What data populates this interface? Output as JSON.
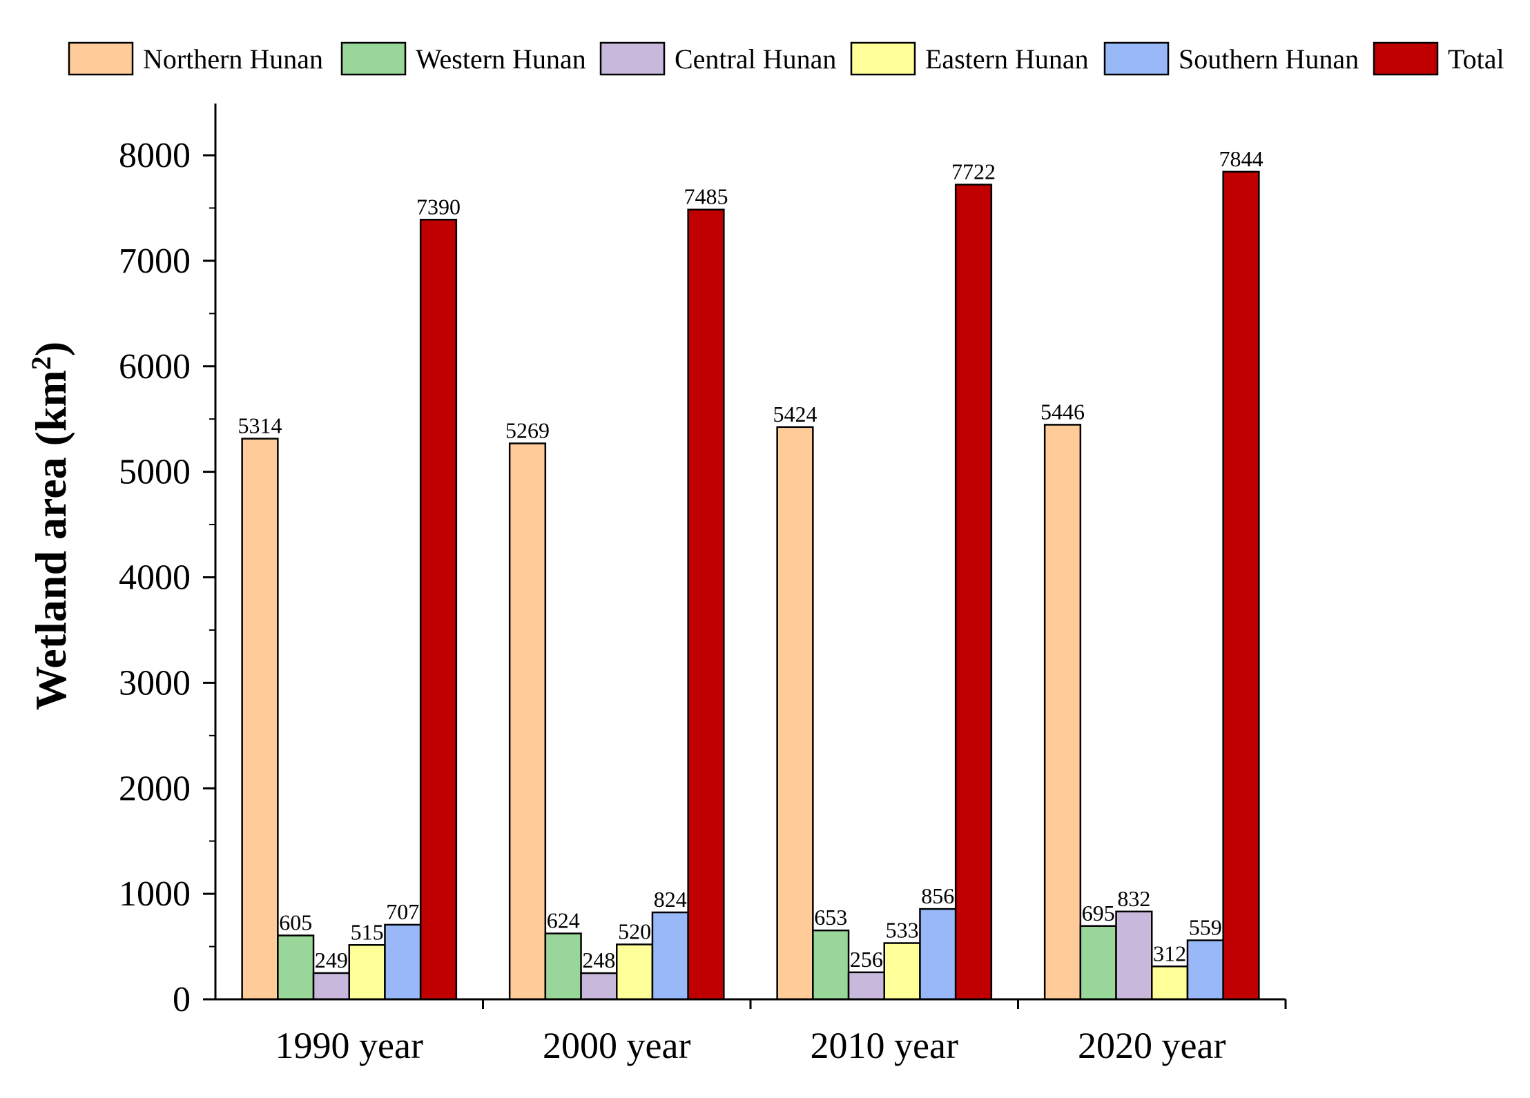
{
  "chart_data": {
    "type": "bar",
    "categories": [
      "1990 year",
      "2000 year",
      "2010 year",
      "2020 year"
    ],
    "series": [
      {
        "name": "Northern Hunan",
        "color": "#FFCC99",
        "values": [
          5314,
          5269,
          5424,
          5446
        ]
      },
      {
        "name": "Western Hunan",
        "color": "#99D699",
        "values": [
          605,
          624,
          653,
          695
        ]
      },
      {
        "name": "Central Hunan",
        "color": "#C8B8DC",
        "values": [
          249,
          248,
          256,
          832
        ]
      },
      {
        "name": "Eastern Hunan",
        "color": "#FFFF99",
        "values": [
          515,
          520,
          533,
          312
        ]
      },
      {
        "name": "Southern Hunan",
        "color": "#99B8F8",
        "values": [
          707,
          824,
          856,
          559
        ]
      },
      {
        "name": "Total",
        "color": "#C00000",
        "values": [
          7390,
          7485,
          7722,
          7844
        ]
      }
    ],
    "data_labels": [
      [
        "5314",
        "605",
        "249",
        "515",
        "707",
        "7390"
      ],
      [
        "5269",
        "624",
        "248",
        "520",
        "824",
        "7485"
      ],
      [
        "5424",
        "653",
        "256",
        "533",
        "856",
        "7722"
      ],
      [
        "5446",
        "695",
        "832",
        "312",
        "559",
        "7844"
      ]
    ],
    "ylabel": "Wetland area (km",
    "ylabel_superscript": "2",
    "ylabel_close": ")",
    "xlabel": "",
    "yticks": [
      0,
      1000,
      2000,
      3000,
      4000,
      5000,
      6000,
      7000,
      8000
    ],
    "ytick_labels": [
      "0",
      "1000",
      "2000",
      "3000",
      "4000",
      "5000",
      "6000",
      "7000",
      "8000"
    ],
    "ylim": [
      0,
      8500
    ],
    "grid": false,
    "legend_position": "top"
  }
}
